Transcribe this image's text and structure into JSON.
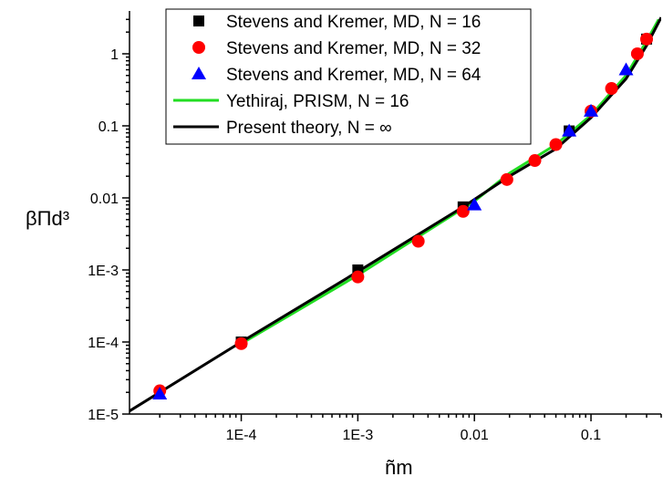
{
  "chart_data": {
    "type": "scatter",
    "x_scale": "log",
    "y_scale": "log",
    "xlim": [
      1.1e-05,
      0.4
    ],
    "ylim": [
      1e-05,
      3.5
    ],
    "xlabel": "ñm",
    "ylabel": "βΠd³",
    "xticks": [
      {
        "value": 0.0001,
        "label": "1E-4"
      },
      {
        "value": 0.001,
        "label": "1E-3"
      },
      {
        "value": 0.01,
        "label": "0.01"
      },
      {
        "value": 0.1,
        "label": "0.1"
      }
    ],
    "yticks": [
      {
        "value": 1e-05,
        "label": "1E-5"
      },
      {
        "value": 0.0001,
        "label": "1E-4"
      },
      {
        "value": 0.001,
        "label": "1E-3"
      },
      {
        "value": 0.01,
        "label": "0.01"
      },
      {
        "value": 0.1,
        "label": "0.1"
      },
      {
        "value": 1,
        "label": "1"
      }
    ],
    "grid": false,
    "legend_position": "top-center",
    "series": [
      {
        "name": "Stevens and Kremer, MD, N = 16",
        "kind": "markers",
        "marker": "square",
        "color": "#000000",
        "points": [
          [
            0.0001,
            0.0001
          ],
          [
            0.001,
            0.001
          ],
          [
            0.008,
            0.0075
          ],
          [
            0.065,
            0.085
          ],
          [
            0.3,
            1.6
          ]
        ]
      },
      {
        "name": "Stevens and Kremer, MD, N = 32",
        "kind": "markers",
        "marker": "circle",
        "color": "#ff0000",
        "points": [
          [
            2e-05,
            2.1e-05
          ],
          [
            0.0001,
            9.5e-05
          ],
          [
            0.001,
            0.0008
          ],
          [
            0.0033,
            0.0025
          ],
          [
            0.008,
            0.0065
          ],
          [
            0.019,
            0.018
          ],
          [
            0.033,
            0.033
          ],
          [
            0.05,
            0.055
          ],
          [
            0.1,
            0.16
          ],
          [
            0.15,
            0.33
          ],
          [
            0.25,
            1.0
          ],
          [
            0.3,
            1.6
          ]
        ]
      },
      {
        "name": "Stevens and Kremer, MD, N = 64",
        "kind": "markers",
        "marker": "triangle",
        "color": "#0000ff",
        "points": [
          [
            2e-05,
            1.9e-05
          ],
          [
            0.01,
            0.008
          ],
          [
            0.065,
            0.085
          ],
          [
            0.1,
            0.16
          ],
          [
            0.2,
            0.6
          ]
        ]
      },
      {
        "name": "Yethiraj, PRISM, N = 16",
        "kind": "line",
        "color": "#22dd22",
        "points": [
          [
            0.0001,
            9.5e-05
          ],
          [
            0.001,
            0.00085
          ],
          [
            0.01,
            0.009
          ],
          [
            0.02,
            0.022
          ],
          [
            0.05,
            0.055
          ],
          [
            0.1,
            0.14
          ],
          [
            0.2,
            0.5
          ],
          [
            0.3,
            1.5
          ],
          [
            0.38,
            3.0
          ]
        ]
      },
      {
        "name": "Present theory, N = ∞",
        "kind": "line",
        "color": "#000000",
        "points": [
          [
            1.1e-05,
            1.1e-05
          ],
          [
            0.0001,
            0.0001
          ],
          [
            0.001,
            0.00095
          ],
          [
            0.008,
            0.0075
          ],
          [
            0.02,
            0.02
          ],
          [
            0.05,
            0.048
          ],
          [
            0.1,
            0.13
          ],
          [
            0.2,
            0.45
          ],
          [
            0.3,
            1.3
          ],
          [
            0.4,
            3.2
          ]
        ]
      }
    ]
  }
}
